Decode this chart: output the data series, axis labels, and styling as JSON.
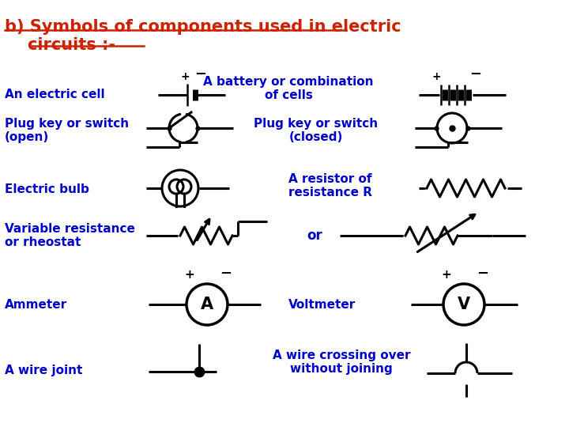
{
  "bg_color": "#ffffff",
  "title_color": "#cc2200",
  "label_color": "#0000cc",
  "symbol_color": "#000000",
  "title": "b) Symbols of components used in electric\n    circuits :-",
  "labels": {
    "electric_cell": "An electric cell",
    "battery": "A battery or combination\nof cells",
    "switch_open": "Plug key or switch\n(open)",
    "switch_closed": "Plug key or switch\n(closed)",
    "bulb": "Electric bulb",
    "resistor": "A resistor of\nresistance R",
    "variable_res": "Variable resistance\nor rheostat",
    "or_text": "or",
    "ammeter": "Ammeter",
    "voltmeter": "Voltmeter",
    "wire_joint": "A wire joint",
    "wire_crossing": "A wire crossing over\nwithout joining"
  }
}
